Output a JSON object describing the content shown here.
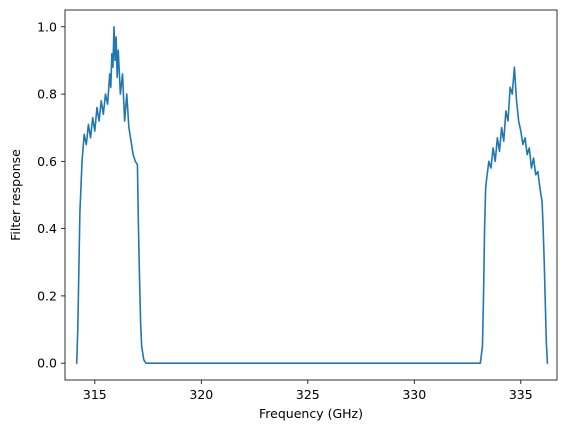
{
  "chart_data": {
    "type": "line",
    "title": "",
    "xlabel": "Frequency (GHz)",
    "ylabel": "Filter response",
    "xlim": [
      313.6,
      336.7
    ],
    "ylim": [
      -0.05,
      1.05
    ],
    "xticks": [
      315,
      320,
      325,
      330,
      335
    ],
    "xtick_labels": [
      "315",
      "320",
      "325",
      "330",
      "335"
    ],
    "yticks": [
      0.0,
      0.2,
      0.4,
      0.6,
      0.8,
      1.0
    ],
    "ytick_labels": [
      "0.0",
      "0.2",
      "0.4",
      "0.6",
      "0.8",
      "1.0"
    ],
    "grid": false,
    "colors": {
      "series": "#1f77b4"
    },
    "series": [
      {
        "x": [
          314.15,
          314.2,
          314.3,
          314.4,
          314.5,
          314.6,
          314.7,
          314.8,
          314.9,
          315.0,
          315.1,
          315.2,
          315.3,
          315.4,
          315.5,
          315.6,
          315.7,
          315.75,
          315.8,
          315.85,
          315.9,
          315.95,
          316.0,
          316.05,
          316.1,
          316.2,
          316.3,
          316.4,
          316.5,
          316.6,
          316.7,
          316.8,
          316.9,
          317.0,
          317.05,
          317.1,
          317.15,
          317.2,
          317.3,
          317.4,
          318,
          320,
          322,
          324,
          326,
          328,
          330,
          332,
          333.0,
          333.1,
          333.2,
          333.25,
          333.3,
          333.35,
          333.4,
          333.5,
          333.6,
          333.7,
          333.8,
          333.9,
          334.0,
          334.1,
          334.2,
          334.3,
          334.4,
          334.5,
          334.6,
          334.7,
          334.8,
          334.9,
          335.0,
          335.1,
          335.2,
          335.3,
          335.4,
          335.5,
          335.6,
          335.7,
          335.8,
          335.9,
          336.0,
          336.05,
          336.1,
          336.15,
          336.2,
          336.25
        ],
        "values": [
          0.0,
          0.1,
          0.45,
          0.6,
          0.68,
          0.65,
          0.71,
          0.67,
          0.73,
          0.69,
          0.76,
          0.72,
          0.78,
          0.74,
          0.8,
          0.77,
          0.86,
          0.82,
          0.92,
          0.88,
          1.0,
          0.9,
          0.97,
          0.85,
          0.93,
          0.8,
          0.86,
          0.72,
          0.8,
          0.7,
          0.66,
          0.62,
          0.6,
          0.59,
          0.4,
          0.25,
          0.12,
          0.05,
          0.01,
          0.0,
          0.0,
          0.0,
          0.0,
          0.0,
          0.0,
          0.0,
          0.0,
          0.0,
          0.0,
          0.0,
          0.05,
          0.2,
          0.4,
          0.52,
          0.55,
          0.6,
          0.58,
          0.64,
          0.6,
          0.67,
          0.63,
          0.7,
          0.66,
          0.75,
          0.72,
          0.82,
          0.8,
          0.88,
          0.78,
          0.72,
          0.69,
          0.65,
          0.67,
          0.62,
          0.64,
          0.58,
          0.61,
          0.56,
          0.57,
          0.52,
          0.48,
          0.4,
          0.3,
          0.18,
          0.06,
          0.0
        ]
      }
    ]
  }
}
